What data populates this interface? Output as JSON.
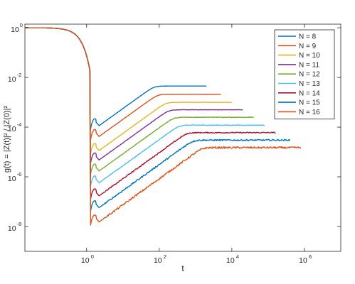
{
  "chart_data": {
    "type": "line",
    "title": "",
    "xlabel": "t",
    "ylabel": "g(t) = |Z(t)|² / |Z(0)|²",
    "x_scale": "log",
    "y_scale": "log",
    "xlim": [
      0.02,
      10000000
    ],
    "ylim": [
      1e-09,
      1.4
    ],
    "x_ticks": [
      {
        "value": 1,
        "label": "10",
        "exp": "0"
      },
      {
        "value": 100,
        "label": "10",
        "exp": "2"
      },
      {
        "value": 10000,
        "label": "10",
        "exp": "4"
      },
      {
        "value": 1000000,
        "label": "10",
        "exp": "6"
      }
    ],
    "y_ticks": [
      {
        "value": 1,
        "label": "10",
        "exp": "0"
      },
      {
        "value": 0.01,
        "label": "10",
        "exp": "-2"
      },
      {
        "value": 0.0001,
        "label": "10",
        "exp": "-4"
      },
      {
        "value": 1e-06,
        "label": "10",
        "exp": "-6"
      },
      {
        "value": 1e-08,
        "label": "10",
        "exp": "-8"
      }
    ],
    "grid": false,
    "legend_position": "top-right",
    "series": [
      {
        "name": "N = 8",
        "color": "#0072bd",
        "tmax": 2000,
        "plateau": 0.0045,
        "dip": 6e-05,
        "noise": 0.0
      },
      {
        "name": "N = 9",
        "color": "#d95319",
        "tmax": 5000,
        "plateau": 0.0021,
        "dip": 2.2e-05,
        "noise": 0.005
      },
      {
        "name": "N = 10",
        "color": "#edb120",
        "tmax": 10000,
        "plateau": 0.001,
        "dip": 6e-06,
        "noise": 0.007
      },
      {
        "name": "N = 11",
        "color": "#7e2f8e",
        "tmax": 20000,
        "plateau": 0.0005,
        "dip": 2.5e-06,
        "noise": 0.01
      },
      {
        "name": "N = 12",
        "color": "#77ac30",
        "tmax": 40000,
        "plateau": 0.00025,
        "dip": 9e-07,
        "noise": 0.015
      },
      {
        "name": "N = 13",
        "color": "#4dbeee",
        "tmax": 80000,
        "plateau": 0.00012,
        "dip": 3e-07,
        "noise": 0.02
      },
      {
        "name": "N = 14",
        "color": "#a2142f",
        "tmax": 160000,
        "plateau": 6e-05,
        "dip": 9e-08,
        "noise": 0.03
      },
      {
        "name": "N = 15",
        "color": "#0072bd",
        "tmax": 400000,
        "plateau": 3e-05,
        "dip": 3e-08,
        "noise": 0.04
      },
      {
        "name": "N = 16",
        "color": "#d95319",
        "tmax": 800000,
        "plateau": 1.5e-05,
        "dip": 8e-09,
        "noise": 0.05
      }
    ]
  }
}
